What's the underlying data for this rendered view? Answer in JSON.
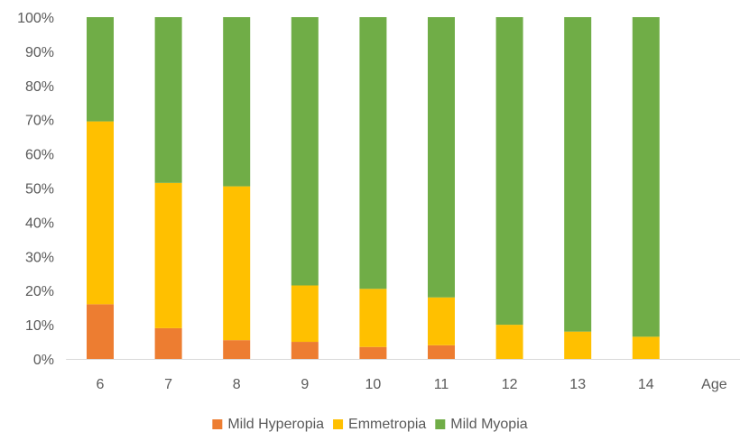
{
  "chart_data": {
    "type": "bar",
    "stacked": true,
    "categories": [
      "6",
      "7",
      "8",
      "9",
      "10",
      "11",
      "12",
      "13",
      "14"
    ],
    "x_axis_end_label": "Age",
    "y_ticks": [
      "0%",
      "10%",
      "20%",
      "30%",
      "40%",
      "50%",
      "60%",
      "70%",
      "80%",
      "90%",
      "100%"
    ],
    "ylim": [
      0,
      100
    ],
    "y_unit": "%",
    "grid": false,
    "legend_position": "bottom",
    "series": [
      {
        "name": "Mild Hyperopia",
        "color": "#ED7D31",
        "values": [
          16,
          9,
          5.5,
          5,
          3.5,
          4,
          0,
          0,
          0
        ]
      },
      {
        "name": "Emmetropia",
        "color": "#FFC000",
        "values": [
          53.5,
          42.5,
          45,
          16.5,
          17,
          14,
          10,
          8,
          6.5
        ]
      },
      {
        "name": "Mild Myopia",
        "color": "#70AD47",
        "values": [
          30.5,
          48.5,
          49.5,
          78.5,
          79.5,
          82,
          90,
          92,
          93.5
        ]
      }
    ]
  }
}
